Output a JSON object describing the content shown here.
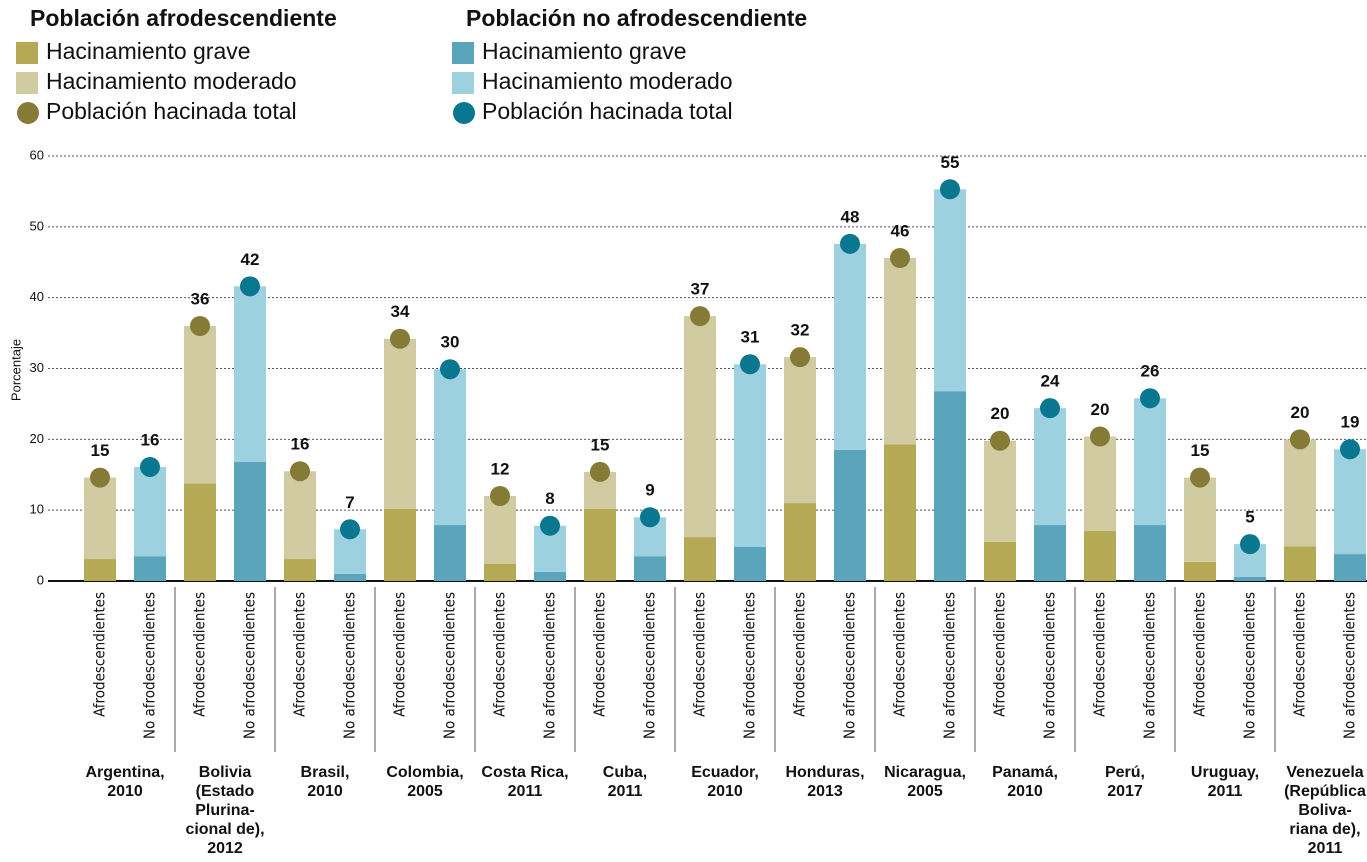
{
  "chart_data": {
    "type": "bar",
    "stacked": true,
    "y_label": "Porcentaje",
    "legend_groups": [
      "Población afrodescendiente",
      "Población no afrodescendiente"
    ],
    "bar_labels": [
      "Afrodescendientes",
      "No afrodescendientes"
    ],
    "categories": [
      "Argentina,\n2010",
      "Bolivia\n(Estado\nPlurina-\ncional de),\n2012",
      "Brasil,\n2010",
      "Colombia,\n2005",
      "Costa Rica,\n2011",
      "Cuba,\n2011",
      "Ecuador,\n2010",
      "Honduras,\n2013",
      "Nicaragua,\n2005",
      "Panamá,\n2010",
      "Perú,\n2017",
      "Uruguay,\n2011",
      "Venezuela\n(República\nBoliva-\nriana de),\n2011"
    ],
    "series": [
      {
        "name": "Hacinamiento grave",
        "group": 0,
        "role": "segment",
        "color": "#b5a955",
        "values": [
          3.1,
          13.8,
          3.1,
          10.2,
          2.4,
          10.2,
          6.2,
          11.0,
          19.3,
          5.5,
          7.1,
          2.7,
          4.9
        ]
      },
      {
        "name": "Hacinamiento moderado",
        "group": 0,
        "role": "segment",
        "color": "#d0cba0",
        "values": [
          11.5,
          22.2,
          12.4,
          24.0,
          9.6,
          5.2,
          31.2,
          20.6,
          26.3,
          14.3,
          13.3,
          11.9,
          15.1
        ]
      },
      {
        "name": "Población hacinada total",
        "group": 0,
        "role": "dot",
        "color": "#857b37",
        "values": [
          14.6,
          36.0,
          15.5,
          34.2,
          12.0,
          15.4,
          37.4,
          31.6,
          45.6,
          19.8,
          20.4,
          14.6,
          20.0
        ],
        "value_labels": [
          "15",
          "36",
          "16",
          "34",
          "12",
          "15",
          "37",
          "32",
          "46",
          "20",
          "20",
          "15",
          "20"
        ]
      },
      {
        "name": "Hacinamiento grave",
        "group": 1,
        "role": "segment",
        "color": "#5aa5bb",
        "values": [
          3.5,
          16.8,
          1.0,
          7.9,
          1.3,
          3.5,
          4.8,
          18.5,
          26.8,
          7.9,
          7.9,
          0.6,
          3.8
        ]
      },
      {
        "name": "Hacinamiento moderado",
        "group": 1,
        "role": "segment",
        "color": "#9ed1e0",
        "values": [
          12.6,
          24.8,
          6.3,
          22.0,
          6.5,
          5.5,
          25.8,
          29.1,
          28.5,
          16.5,
          17.9,
          4.6,
          14.8
        ]
      },
      {
        "name": "Población hacinada total",
        "group": 1,
        "role": "dot",
        "color": "#0a7790",
        "values": [
          16.1,
          41.6,
          7.3,
          29.9,
          7.8,
          9.0,
          30.6,
          47.6,
          55.3,
          24.4,
          25.8,
          5.2,
          18.6
        ],
        "value_labels": [
          "16",
          "42",
          "7",
          "30",
          "8",
          "9",
          "31",
          "48",
          "55",
          "24",
          "26",
          "5",
          "19"
        ]
      }
    ],
    "ylim": [
      0,
      60
    ],
    "yticks": [
      0,
      10,
      20,
      30,
      40,
      50,
      60
    ],
    "grid": true
  }
}
